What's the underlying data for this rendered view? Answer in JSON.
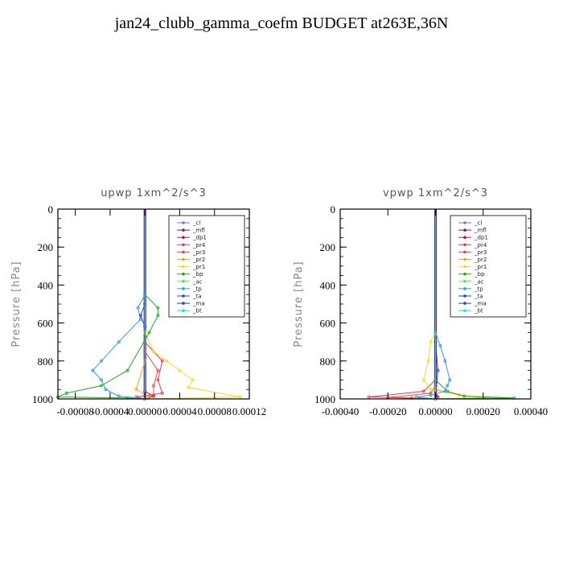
{
  "title": "jan24_clubb_gamma_coefm  BUDGET at263E,36N",
  "legend_entries": [
    "_cl",
    "_mfl",
    "_dp1",
    "_pr4",
    "_pr3",
    "_pr2",
    "_pr1",
    "_bp",
    "_ac",
    "_tp",
    "_ta",
    "_ma",
    "_bt"
  ],
  "legend_colors": [
    "#9966cc",
    "#7a1a5a",
    "#b0124a",
    "#d83a5a",
    "#e84a3a",
    "#ff9a30",
    "#f2dc20",
    "#22aa22",
    "#44ee44",
    "#3399dd",
    "#2244cc",
    "#2244cc",
    "#22dddd"
  ],
  "chart_data": [
    {
      "type": "line",
      "title": "upwp   1xm^2/s^3",
      "xlabel": "",
      "ylabel": "Pressure [hPa]",
      "xlim": [
        -0.0001,
        0.00012
      ],
      "ylim": [
        1000,
        0
      ],
      "xticks": [
        "-0.00008",
        "-0.00004",
        "0.00000",
        "0.00004",
        "0.00008",
        "0.00012"
      ],
      "yticks": [
        "0",
        "200",
        "400",
        "600",
        "800",
        "1000"
      ],
      "legend": "top-right",
      "series": [
        {
          "name": "_cl",
          "x": [
            0,
            0
          ],
          "y": [
            0,
            1000
          ]
        },
        {
          "name": "_mfl",
          "x": [
            0,
            0
          ],
          "y": [
            0,
            1000
          ]
        },
        {
          "name": "_dp1",
          "x": [
            0,
            0,
            1e-05,
            0
          ],
          "y": [
            0,
            960,
            985,
            1000
          ]
        },
        {
          "name": "_pr4",
          "x": [
            0,
            0,
            2e-05,
            1.5e-05,
            2e-05,
            -1e-05,
            0
          ],
          "y": [
            0,
            700,
            800,
            900,
            970,
            990,
            1000
          ]
        },
        {
          "name": "_pr3",
          "x": [
            0,
            0,
            1.5e-05,
            1e-05,
            1e-05,
            0
          ],
          "y": [
            0,
            750,
            850,
            930,
            980,
            1000
          ]
        },
        {
          "name": "_pr2",
          "x": [
            0,
            0,
            -1e-05,
            5e-06,
            0
          ],
          "y": [
            0,
            800,
            950,
            990,
            1000
          ]
        },
        {
          "name": "_pr1",
          "x": [
            0,
            0,
            1e-05,
            2.5e-05,
            4e-05,
            5.5e-05,
            5e-05,
            0.00011,
            0
          ],
          "y": [
            0,
            650,
            750,
            800,
            850,
            900,
            940,
            990,
            1000
          ]
        },
        {
          "name": "_bp",
          "x": [
            0,
            0,
            1.5e-05,
            1.5e-05,
            5e-06,
            -2e-05,
            -5e-05,
            -9e-05,
            -0.0001,
            -2e-05,
            0
          ],
          "y": [
            0,
            450,
            520,
            560,
            650,
            850,
            930,
            970,
            990,
            995,
            1000
          ]
        },
        {
          "name": "_ac",
          "x": [
            0,
            0
          ],
          "y": [
            0,
            1000
          ]
        },
        {
          "name": "_tp",
          "x": [
            0,
            0,
            -8e-06,
            -5e-06,
            -3e-05,
            -5e-05,
            -6e-05,
            -5e-05,
            -4.5e-05,
            -3e-05,
            0
          ],
          "y": [
            0,
            450,
            520,
            580,
            700,
            800,
            850,
            900,
            950,
            985,
            1000
          ]
        },
        {
          "name": "_ta",
          "x": [
            0,
            0,
            -5e-06,
            0,
            0
          ],
          "y": [
            0,
            500,
            560,
            620,
            1000
          ]
        },
        {
          "name": "_ma",
          "x": [
            0,
            0
          ],
          "y": [
            0,
            1000
          ]
        },
        {
          "name": "_bt",
          "x": [
            0,
            0
          ],
          "y": [
            0,
            1000
          ]
        }
      ]
    },
    {
      "type": "line",
      "title": "vpwp   1xm^2/s^3",
      "xlabel": "",
      "ylabel": "Pressure [hPa]",
      "xlim": [
        -0.0004,
        0.0004
      ],
      "ylim": [
        1000,
        0
      ],
      "xticks": [
        "-0.00040",
        "-0.00020",
        "0.00000",
        "0.00020",
        "0.00040"
      ],
      "yticks": [
        "0",
        "200",
        "400",
        "600",
        "800",
        "1000"
      ],
      "legend": "top-right",
      "series": [
        {
          "name": "_cl",
          "x": [
            0,
            0
          ],
          "y": [
            0,
            1000
          ]
        },
        {
          "name": "_mfl",
          "x": [
            0,
            0
          ],
          "y": [
            0,
            1000
          ]
        },
        {
          "name": "_dp1",
          "x": [
            0,
            0,
            1e-05,
            0
          ],
          "y": [
            0,
            960,
            990,
            1000
          ]
        },
        {
          "name": "_pr4",
          "x": [
            0,
            0,
            -5e-05,
            -0.00028,
            -0.0001,
            0
          ],
          "y": [
            0,
            900,
            960,
            990,
            995,
            1000
          ]
        },
        {
          "name": "_pr3",
          "x": [
            0,
            0,
            -2e-05,
            -0.0002,
            0
          ],
          "y": [
            0,
            930,
            970,
            993,
            1000
          ]
        },
        {
          "name": "_pr2",
          "x": [
            0,
            0,
            0.0001,
            0.0002,
            0
          ],
          "y": [
            0,
            950,
            980,
            995,
            1000
          ]
        },
        {
          "name": "_pr1",
          "x": [
            0,
            0,
            -2e-05,
            -3e-05,
            -5e-05,
            -2e-05,
            0.0001,
            0.00022,
            0
          ],
          "y": [
            0,
            650,
            700,
            800,
            900,
            950,
            980,
            995,
            1000
          ]
        },
        {
          "name": "_bp",
          "x": [
            0,
            0,
            5e-05,
            0.00012,
            0.00033,
            0
          ],
          "y": [
            0,
            900,
            960,
            985,
            995,
            1000
          ]
        },
        {
          "name": "_ac",
          "x": [
            0,
            0
          ],
          "y": [
            0,
            1000
          ]
        },
        {
          "name": "_tp",
          "x": [
            0,
            0,
            2e-05,
            4e-05,
            6e-05,
            5e-05,
            4e-05,
            -2e-05,
            -8e-05,
            0
          ],
          "y": [
            0,
            650,
            720,
            800,
            900,
            930,
            960,
            980,
            990,
            1000
          ]
        },
        {
          "name": "_ta",
          "x": [
            0,
            0,
            1e-05,
            0
          ],
          "y": [
            0,
            700,
            850,
            1000
          ]
        },
        {
          "name": "_ma",
          "x": [
            0,
            0
          ],
          "y": [
            0,
            1000
          ]
        },
        {
          "name": "_bt",
          "x": [
            0,
            0
          ],
          "y": [
            0,
            1000
          ]
        }
      ]
    }
  ]
}
